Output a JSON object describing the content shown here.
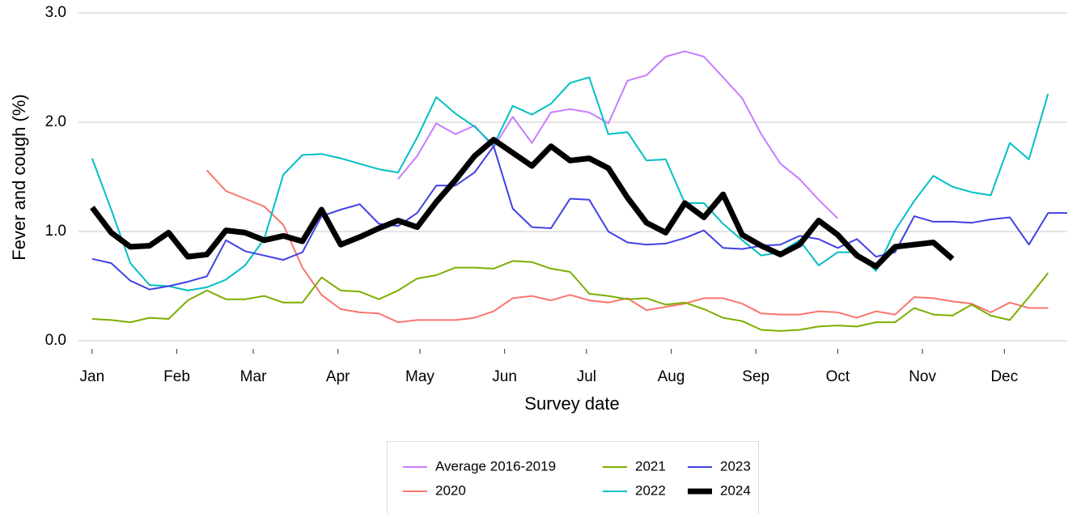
{
  "chart_data": {
    "type": "line",
    "xlabel": "Survey date",
    "ylabel": "Fever and cough (%)",
    "x": [
      1,
      8,
      15,
      22,
      29,
      36,
      43,
      50,
      57,
      64,
      71,
      78,
      85,
      92,
      99,
      106,
      113,
      120,
      127,
      134,
      141,
      148,
      155,
      162,
      169,
      176,
      183,
      190,
      197,
      204,
      211,
      218,
      225,
      232,
      239,
      246,
      253,
      260,
      267,
      274,
      281,
      288,
      295,
      302,
      309,
      316,
      323,
      330,
      337,
      344,
      351,
      358
    ],
    "xlim": [
      -4,
      358
    ],
    "xticks": [
      {
        "value": 1,
        "label": "Jan"
      },
      {
        "value": 32,
        "label": "Feb"
      },
      {
        "value": 60,
        "label": "Mar"
      },
      {
        "value": 91,
        "label": "Apr"
      },
      {
        "value": 121,
        "label": "May"
      },
      {
        "value": 152,
        "label": "Jun"
      },
      {
        "value": 182,
        "label": "Jul"
      },
      {
        "value": 213,
        "label": "Aug"
      },
      {
        "value": 244,
        "label": "Sep"
      },
      {
        "value": 274,
        "label": "Oct"
      },
      {
        "value": 305,
        "label": "Nov"
      },
      {
        "value": 335,
        "label": "Dec"
      }
    ],
    "ylim": [
      0,
      3
    ],
    "yticks": [
      {
        "value": 0,
        "label": "0.0"
      },
      {
        "value": 1,
        "label": "1.0"
      },
      {
        "value": 2,
        "label": "2.0"
      },
      {
        "value": 3,
        "label": "3.0"
      }
    ],
    "grid": true,
    "legend": "bottom",
    "series": [
      {
        "name": "Average 2016-2019",
        "color": "#C77CFF",
        "width": 2,
        "values": [
          null,
          null,
          null,
          null,
          null,
          null,
          null,
          null,
          null,
          null,
          null,
          null,
          null,
          null,
          null,
          null,
          1.48,
          1.69,
          1.99,
          1.89,
          1.97,
          1.77,
          2.05,
          1.81,
          2.09,
          2.12,
          2.09,
          1.99,
          2.38,
          2.43,
          2.6,
          2.65,
          2.6,
          2.41,
          2.22,
          1.89,
          1.62,
          1.48,
          1.29,
          1.12,
          null,
          null,
          null,
          null,
          null,
          null,
          null,
          null,
          null,
          null,
          null,
          null
        ]
      },
      {
        "name": "2020",
        "color": "#F8766D",
        "width": 2,
        "values": [
          null,
          null,
          null,
          null,
          null,
          null,
          1.56,
          1.37,
          1.3,
          1.23,
          1.06,
          0.67,
          0.42,
          0.29,
          0.26,
          0.25,
          0.17,
          0.19,
          0.19,
          0.19,
          0.21,
          0.27,
          0.39,
          0.41,
          0.37,
          0.42,
          0.37,
          0.35,
          0.39,
          0.28,
          0.31,
          0.34,
          0.39,
          0.39,
          0.34,
          0.25,
          0.24,
          0.24,
          0.27,
          0.26,
          0.21,
          0.27,
          0.24,
          0.4,
          0.39,
          0.36,
          0.34,
          0.26,
          0.35,
          0.3,
          0.3,
          null
        ]
      },
      {
        "name": "2021",
        "color": "#7CAE00",
        "width": 2,
        "values": [
          0.2,
          0.19,
          0.17,
          0.21,
          0.2,
          0.37,
          0.46,
          0.38,
          0.38,
          0.41,
          0.35,
          0.35,
          0.58,
          0.46,
          0.45,
          0.38,
          0.46,
          0.57,
          0.6,
          0.67,
          0.67,
          0.66,
          0.73,
          0.72,
          0.66,
          0.63,
          0.43,
          0.41,
          0.38,
          0.39,
          0.33,
          0.35,
          0.29,
          0.21,
          0.18,
          0.1,
          0.09,
          0.1,
          0.13,
          0.14,
          0.13,
          0.17,
          0.17,
          0.3,
          0.24,
          0.23,
          0.33,
          0.23,
          0.19,
          0.4,
          0.62,
          null
        ]
      },
      {
        "name": "2022",
        "color": "#00BFC4",
        "width": 2,
        "values": [
          1.67,
          1.2,
          0.71,
          0.51,
          0.5,
          0.46,
          0.49,
          0.56,
          0.69,
          0.93,
          1.52,
          1.7,
          1.71,
          1.67,
          1.62,
          1.57,
          1.54,
          1.86,
          2.23,
          2.08,
          1.96,
          1.79,
          2.15,
          2.07,
          2.17,
          2.36,
          2.41,
          1.89,
          1.91,
          1.65,
          1.66,
          1.26,
          1.26,
          1.07,
          0.92,
          0.78,
          0.81,
          0.92,
          0.69,
          0.81,
          0.81,
          0.64,
          1.01,
          1.28,
          1.51,
          1.41,
          1.36,
          1.33,
          1.81,
          1.66,
          2.26,
          null
        ]
      },
      {
        "name": "2023",
        "color": "#4141E6",
        "width": 2,
        "values": [
          0.75,
          0.71,
          0.55,
          0.47,
          0.5,
          0.54,
          0.59,
          0.92,
          0.82,
          0.78,
          0.74,
          0.81,
          1.14,
          1.2,
          1.25,
          1.07,
          1.05,
          1.17,
          1.42,
          1.42,
          1.54,
          1.78,
          1.21,
          1.04,
          1.03,
          1.3,
          1.29,
          1.0,
          0.9,
          0.88,
          0.89,
          0.94,
          1.01,
          0.85,
          0.84,
          0.87,
          0.88,
          0.96,
          0.93,
          0.85,
          0.93,
          0.77,
          0.81,
          1.14,
          1.09,
          1.09,
          1.08,
          1.11,
          1.13,
          0.88,
          1.17,
          1.17
        ]
      },
      {
        "name": "2024",
        "color": "#000000",
        "width": 7,
        "values": [
          1.22,
          0.99,
          0.86,
          0.87,
          0.99,
          0.77,
          0.79,
          1.01,
          0.99,
          0.92,
          0.96,
          0.91,
          1.2,
          0.88,
          0.95,
          1.03,
          1.1,
          1.04,
          1.27,
          1.47,
          1.69,
          1.84,
          1.72,
          1.6,
          1.78,
          1.65,
          1.67,
          1.58,
          1.31,
          1.08,
          0.99,
          1.26,
          1.13,
          1.34,
          0.97,
          0.87,
          0.79,
          0.88,
          1.1,
          0.97,
          0.78,
          0.68,
          0.86,
          0.88,
          0.9,
          0.75,
          null,
          null,
          null,
          null,
          null,
          null
        ]
      }
    ]
  }
}
